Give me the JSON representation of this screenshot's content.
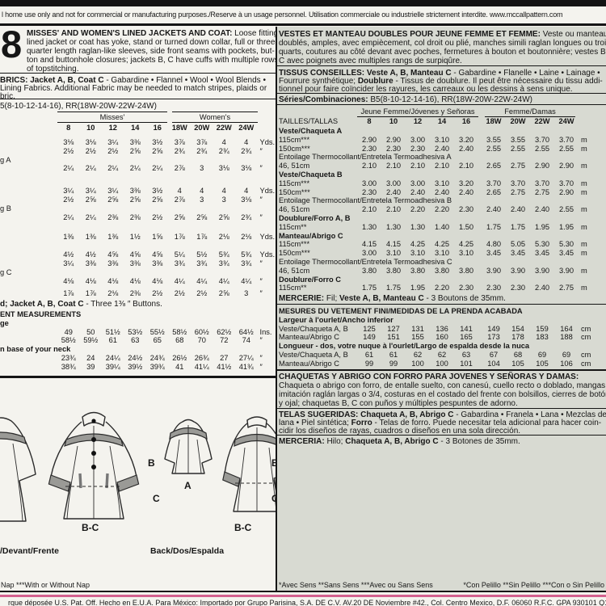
{
  "chrome": {
    "top_legal": "l home use only and not for commercial or manufacturing purposes./Reserve à un usage personnel. Utilisation commerciale ou industrielle strictement interdite. www.mccallpattern.com",
    "footer_legal": "rque déposée U.S. Pat. Off. Hecho en E.U.A. Para México: Importado por Grupo Parisina, S.A. DE C.V. AV.20 DE Noviembre #42., Col. Centro Mexico, D.F. 06060 R.F.C. GPA 930101 Q17",
    "colors": {
      "accent_pink": "#d4618f",
      "panel_gray": "#d8dad2",
      "bar_black": "#141414"
    }
  },
  "left": {
    "pattern_number": "8",
    "description": [
      {
        "t": "MISSES' AND WOMEN'S LINED JACKETS AND COAT:",
        "b": 1
      },
      {
        "t": " Loose fitting,",
        "b": 0
      }
    ],
    "description_lines": [
      "lined jacket or coat has yoke, stand or turned down collar, full or three-",
      "quarter length raglan-like sleeves, side front seams with pockets, but-",
      "ton and buttonhole closures; jackets B, C have cuffs with multiple rows",
      "of topstitching."
    ],
    "fabrics_line1": [
      {
        "t": "BRICS: Jacket A, B, Coat C",
        "b": 1
      },
      {
        "t": " - Gabardine • Flannel • Wool • Wool Blends •",
        "b": 0
      }
    ],
    "fabrics_line2": "Lining Fabrics. Additional Fabric may be needed to match stripes, plaids or",
    "fabrics_line3": "bric.",
    "sizes_line": "5(8-10-12-14-16), RR(18W-20W-22W-24W)",
    "group_misses": "Misses'",
    "group_womens": "Women's",
    "size_header": {
      "l": "",
      "vb": 1,
      "v": [
        "8",
        "10",
        "12",
        "14",
        "16",
        "18W",
        "20W",
        "22W",
        "24W"
      ]
    },
    "yardage_rows": [
      {
        "l": "",
        "v": [
          "3⅛",
          "3⅛",
          "3¼",
          "3⅜",
          "3½",
          "3⅞",
          "3⅞",
          "4",
          "4"
        ],
        "u": "Yds."
      },
      {
        "l": "",
        "v": [
          "2½",
          "2½",
          "2½",
          "2⅝",
          "2⅝",
          "2¾",
          "2¾",
          "2¾",
          "2¾"
        ],
        "u": "″"
      },
      {
        "l": "g A"
      },
      {
        "l": "",
        "v": [
          "2¼",
          "2¼",
          "2¼",
          "2¼",
          "2¼",
          "2⅞",
          "3",
          "3⅛",
          "3⅛"
        ],
        "u": "″"
      },
      {
        "l": "",
        "g": 17,
        "v": [
          "3¼",
          "3¼",
          "3¼",
          "3⅜",
          "3½",
          "4",
          "4",
          "4",
          "4"
        ],
        "u": "Yds."
      },
      {
        "l": "",
        "v": [
          "2½",
          "2⅝",
          "2⅝",
          "2⅝",
          "2⅝",
          "2⅞",
          "3",
          "3",
          "3⅛"
        ],
        "u": "″"
      },
      {
        "l": "g B"
      },
      {
        "l": "",
        "v": [
          "2¼",
          "2¼",
          "2⅜",
          "2⅜",
          "2½",
          "2⅝",
          "2⅝",
          "2⅝",
          "2¾"
        ],
        "u": "″"
      },
      {
        "l": "",
        "g": 14,
        "v": [
          "1⅜",
          "1⅜",
          "1⅜",
          "1½",
          "1⅝",
          "1⅞",
          "1⅞",
          "2⅛",
          "2⅛"
        ],
        "u": "Yds."
      },
      {
        "l": "",
        "g": 11,
        "v": [
          "4½",
          "4½",
          "4⅝",
          "4⅝",
          "4⅝",
          "5¼",
          "5½",
          "5¾",
          "5¾"
        ],
        "u": "Yds."
      },
      {
        "l": "",
        "v": [
          "3¼",
          "3⅜",
          "3⅜",
          "3⅜",
          "3⅜",
          "3¾",
          "3¾",
          "3¾",
          "3¾"
        ],
        "u": "″"
      },
      {
        "l": "g C"
      },
      {
        "l": "",
        "v": [
          "4⅛",
          "4⅛",
          "4⅛",
          "4⅛",
          "4⅛",
          "4¼",
          "4¼",
          "4¼",
          "4¼"
        ],
        "u": "″"
      },
      {
        "l": "",
        "g": 5,
        "v": [
          "1⅞",
          "1⅞",
          "2⅛",
          "2⅜",
          "2½",
          "2½",
          "2½",
          "2⅝",
          "3"
        ],
        "u": "″"
      }
    ],
    "notions_line": [
      {
        "t": "d; Jacket A, B, Coat C",
        "b": 1
      },
      {
        "t": " - Three 1⅜ ″ Buttons.",
        "b": 0
      }
    ],
    "finished_rows": [
      {
        "l": "ENT MEASUREMENTS",
        "b": 1
      },
      {
        "l": "ge",
        "b": 1
      },
      {
        "l": "",
        "v": [
          "49",
          "50",
          "51½",
          "53½",
          "55½",
          "58½",
          "60½",
          "62½",
          "64½"
        ],
        "u": "Ins."
      },
      {
        "l": "",
        "v": [
          "58½",
          "59½",
          "61",
          "63",
          "65",
          "68",
          "70",
          "72",
          "74"
        ],
        "u": "″"
      },
      {
        "l": "n base of your neck",
        "b": 1
      },
      {
        "l": "",
        "v": [
          "23¾",
          "24",
          "24¼",
          "24½",
          "24¾",
          "26½",
          "26¾",
          "27",
          "27¼"
        ],
        "u": "″"
      },
      {
        "l": "",
        "v": [
          "38¾",
          "39",
          "39¼",
          "39½",
          "39¾",
          "41",
          "41¼",
          "41½",
          "41¾"
        ],
        "u": "″"
      }
    ],
    "drawings": {
      "front_caption": "/Devant/Frente",
      "back_caption": "Back/Dos/Espalda",
      "label_a": "A",
      "label_b": "B",
      "label_c": "C",
      "label_bc": "B-C"
    },
    "nap_note": "Nap ***With or Without Nap"
  },
  "right": {
    "description_line1": [
      {
        "t": "VESTES ET MANTEAU DOUBLES POUR JEUNE FEMME ET FEMME:",
        "b": 1
      },
      {
        "t": " Veste ou manteau",
        "b": 0
      }
    ],
    "description_lines": [
      "doublés, amples, avec empiècement, col droit ou plié, manches simili raglan longues ou trois-",
      "quarts, coutures au côté devant avec poches, fermetures à bouton et boutonnière; vestes B,",
      "C avec poignets avec multiples rangs de surpiqûre."
    ],
    "tissus_line1": [
      {
        "t": "TISSUS CONSEILLES: Veste A, B, Manteau C",
        "b": 1
      },
      {
        "t": " - Gabardine • Flanelle • Laine • Lainage •",
        "b": 0
      }
    ],
    "tissus_line2": [
      {
        "t": "Fourrure synthétique; ",
        "b": 0
      },
      {
        "t": "Doublure",
        "b": 1
      },
      {
        "t": " - Tissus de doublure. Il peut être nécessaire du tissu addi-",
        "b": 0
      }
    ],
    "tissus_line3": "tionnel pour faire coïncider les rayures, les carreaux ou les dessins à sens unique.",
    "series_line": [
      {
        "t": "Séries/Combinaciones:",
        "b": 1
      },
      {
        "t": " B5(8-10-12-14-16), RR(18W-20W-22W-24W)",
        "b": 0
      }
    ],
    "group_jeune": "Jeune Femme/Jóvenes y Señoras",
    "group_femme": "Femme/Damas",
    "tailles_header": {
      "l": "TAILLES/TALLAS",
      "vb": 1,
      "v": [
        "8",
        "10",
        "12",
        "14",
        "16",
        "18W",
        "20W",
        "22W",
        "24W"
      ]
    },
    "metrage_rows": [
      {
        "l": "Veste/Chaqueta A",
        "b": 1
      },
      {
        "l": "115cm***",
        "v": [
          "2.90",
          "2.90",
          "3.00",
          "3.10",
          "3.20",
          "3.55",
          "3.55",
          "3.70",
          "3.70"
        ],
        "u": "m"
      },
      {
        "l": "150cm***",
        "v": [
          "2.30",
          "2.30",
          "2.30",
          "2.40",
          "2.40",
          "2.55",
          "2.55",
          "2.55",
          "2.55"
        ],
        "u": "m"
      },
      {
        "l": "Entoilage Thermocollant/Entretela Termoadhesiva A"
      },
      {
        "l": "46, 51cm",
        "v": [
          "2.10",
          "2.10",
          "2.10",
          "2.10",
          "2.10",
          "2.65",
          "2.75",
          "2.90",
          "2.90"
        ],
        "u": "m"
      },
      {
        "l": "Veste/Chaqueta B",
        "b": 1
      },
      {
        "l": "115cm***",
        "v": [
          "3.00",
          "3.00",
          "3.00",
          "3.10",
          "3.20",
          "3.70",
          "3.70",
          "3.70",
          "3.70"
        ],
        "u": "m"
      },
      {
        "l": "150cm***",
        "v": [
          "2.30",
          "2.40",
          "2.40",
          "2.40",
          "2.40",
          "2.65",
          "2.75",
          "2.75",
          "2.90"
        ],
        "u": "m"
      },
      {
        "l": "Entoilage Thermocollant/Entretela Termoadhesiva B"
      },
      {
        "l": "46, 51cm",
        "v": [
          "2.10",
          "2.10",
          "2.20",
          "2.20",
          "2.30",
          "2.40",
          "2.40",
          "2.40",
          "2.55"
        ],
        "u": "m"
      },
      {
        "l": "Doublure/Forro A, B",
        "b": 1
      },
      {
        "l": "115cm**",
        "v": [
          "1.30",
          "1.30",
          "1.30",
          "1.40",
          "1.50",
          "1.75",
          "1.75",
          "1.95",
          "1.95"
        ],
        "u": "m"
      },
      {
        "l": "Manteau/Abrigo C",
        "b": 1
      },
      {
        "l": "115cm***",
        "v": [
          "4.15",
          "4.15",
          "4.25",
          "4.25",
          "4.25",
          "4.80",
          "5.05",
          "5.30",
          "5.30"
        ],
        "u": "m"
      },
      {
        "l": "150cm***",
        "v": [
          "3.00",
          "3.10",
          "3.10",
          "3.10",
          "3.10",
          "3.45",
          "3.45",
          "3.45",
          "3.45"
        ],
        "u": "m"
      },
      {
        "l": "Entoilage Thermocollant/Entretela Termoadhesiva C"
      },
      {
        "l": "46, 51cm",
        "v": [
          "3.80",
          "3.80",
          "3.80",
          "3.80",
          "3.80",
          "3.90",
          "3.90",
          "3.90",
          "3.90"
        ],
        "u": "m"
      },
      {
        "l": "Doublure/Forro C",
        "b": 1
      },
      {
        "l": "115cm**",
        "v": [
          "1.75",
          "1.75",
          "1.95",
          "2.20",
          "2.30",
          "2.30",
          "2.30",
          "2.40",
          "2.75"
        ],
        "u": "m"
      }
    ],
    "mercerie_line": [
      {
        "t": "MERCERIE:",
        "b": 1
      },
      {
        "t": " Fil; ",
        "b": 0
      },
      {
        "t": "Veste A, B, Manteau C",
        "b": 1
      },
      {
        "t": " - 3 Boutons de 35mm.",
        "b": 0
      }
    ],
    "mesures_rows": [
      {
        "l": "MESURES DU VETEMENT FINI/MEDIDAS DE LA PRENDA ACABADA",
        "b": 1
      },
      {
        "l": "Largeur à l'ourlet/Ancho inferior",
        "b": 1
      },
      {
        "l": "Veste/Chaqueta A, B",
        "v": [
          "125",
          "127",
          "131",
          "136",
          "141",
          "149",
          "154",
          "159",
          "164"
        ],
        "u": "cm"
      },
      {
        "l": "Manteau/Abrigo C",
        "v": [
          "149",
          "151",
          "155",
          "160",
          "165",
          "173",
          "178",
          "183",
          "188"
        ],
        "u": "cm"
      },
      {
        "l": "Longueur - dos, votre nuque à l'ourlet/Largo de espalda desde la nuca",
        "b": 1
      },
      {
        "l": "Veste/Chaqueta A, B",
        "v": [
          "61",
          "61",
          "62",
          "62",
          "63",
          "67",
          "68",
          "69",
          "69"
        ],
        "u": "cm"
      },
      {
        "l": "Manteau/Abrigo C",
        "v": [
          "99",
          "99",
          "100",
          "100",
          "101",
          "104",
          "105",
          "105",
          "106"
        ],
        "u": "cm"
      }
    ],
    "chaquetas_line1": [
      {
        "t": "CHAQUETAS Y ABRIGO CON FORRO PARA JOVENES Y SEÑORAS Y DAMAS:",
        "b": 1
      }
    ],
    "chaquetas_lines": [
      "Chaqueta o abrigo con forro, de entalle suelto, con canesú, cuello recto o doblado, mangas",
      "imitación raglán largas o 3/4, costuras en el costado del frente con bolsillos, cierres de botón",
      "y ojal; chaquetas B, C con puños y múltiples pespuntes de adorno."
    ],
    "telas_line1": [
      {
        "t": "TELAS SUGERIDAS: Chaqueta A, B, Abrigo C",
        "b": 1
      },
      {
        "t": " - Gabardina • Franela • Lana • Mezclas de",
        "b": 0
      }
    ],
    "telas_line2": [
      {
        "t": "lana • Piel sintética; ",
        "b": 0
      },
      {
        "t": "Forro",
        "b": 1
      },
      {
        "t": " - Telas de forro. Puede necesitar tela adicional para hacer coin-",
        "b": 0
      }
    ],
    "telas_line3": "cidir los diseños de rayas, cuadros o diseños en una sola dirección.",
    "merceria_line": [
      {
        "t": "MERCERIA:",
        "b": 1
      },
      {
        "t": " Hilo; ",
        "b": 0
      },
      {
        "t": "Chaqueta A, B, Abrigo C",
        "b": 1
      },
      {
        "t": " - 3 Botones de 35mm.",
        "b": 0
      }
    ],
    "avec_sens_note": "*Avec Sens **Sans Sens ***Avec ou Sans Sens",
    "con_pelillo_note": "*Con Pelillo **Sin Pelillo ***Con o Sin Pelillo"
  }
}
